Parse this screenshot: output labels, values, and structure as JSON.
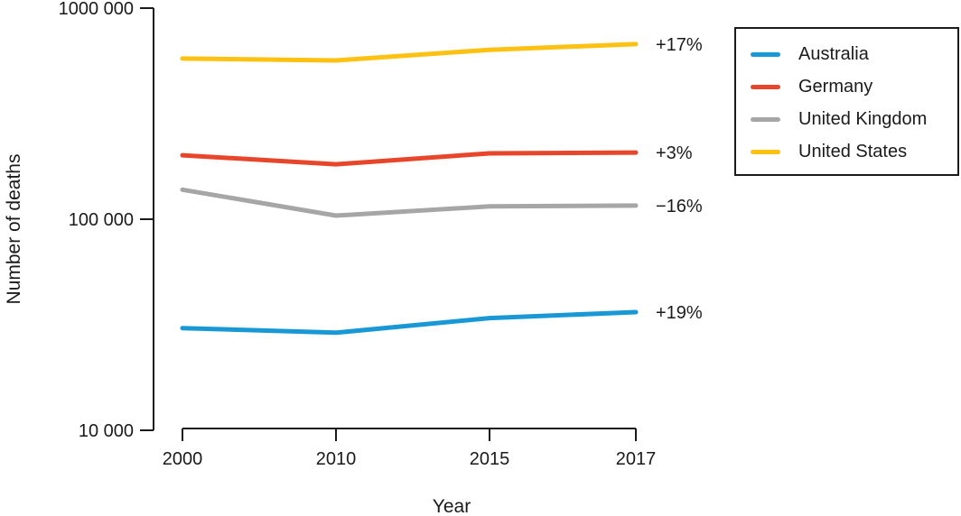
{
  "chart_data": {
    "type": "line",
    "x": [
      2000,
      2010,
      2015,
      2017
    ],
    "x_tick_labels": [
      "2000",
      "2010",
      "2015",
      "2017"
    ],
    "xlabel": "Year",
    "ylabel": "Number of deaths",
    "y_scale": "log",
    "ylim": [
      10000,
      1000000
    ],
    "y_ticks": [
      10000,
      100000,
      1000000
    ],
    "y_tick_labels": [
      "10 000",
      "100 000",
      "1000 000"
    ],
    "grid": false,
    "legend_position": "top-right-box",
    "series": [
      {
        "name": "Australia",
        "color": "#1899D6",
        "values": [
          30500,
          29000,
          34000,
          36300
        ],
        "end_label": "+19%"
      },
      {
        "name": "Germany",
        "color": "#E8462B",
        "values": [
          201000,
          182000,
          205000,
          207000
        ],
        "end_label": "+3%"
      },
      {
        "name": "United Kingdom",
        "color": "#A6A6A6",
        "values": [
          138000,
          104000,
          115000,
          116000
        ],
        "end_label": "−16%"
      },
      {
        "name": "United States",
        "color": "#FDC112",
        "values": [
          577000,
          565000,
          635000,
          675000
        ],
        "end_label": "+17%"
      }
    ],
    "axis_color": "#1b1b1b"
  }
}
